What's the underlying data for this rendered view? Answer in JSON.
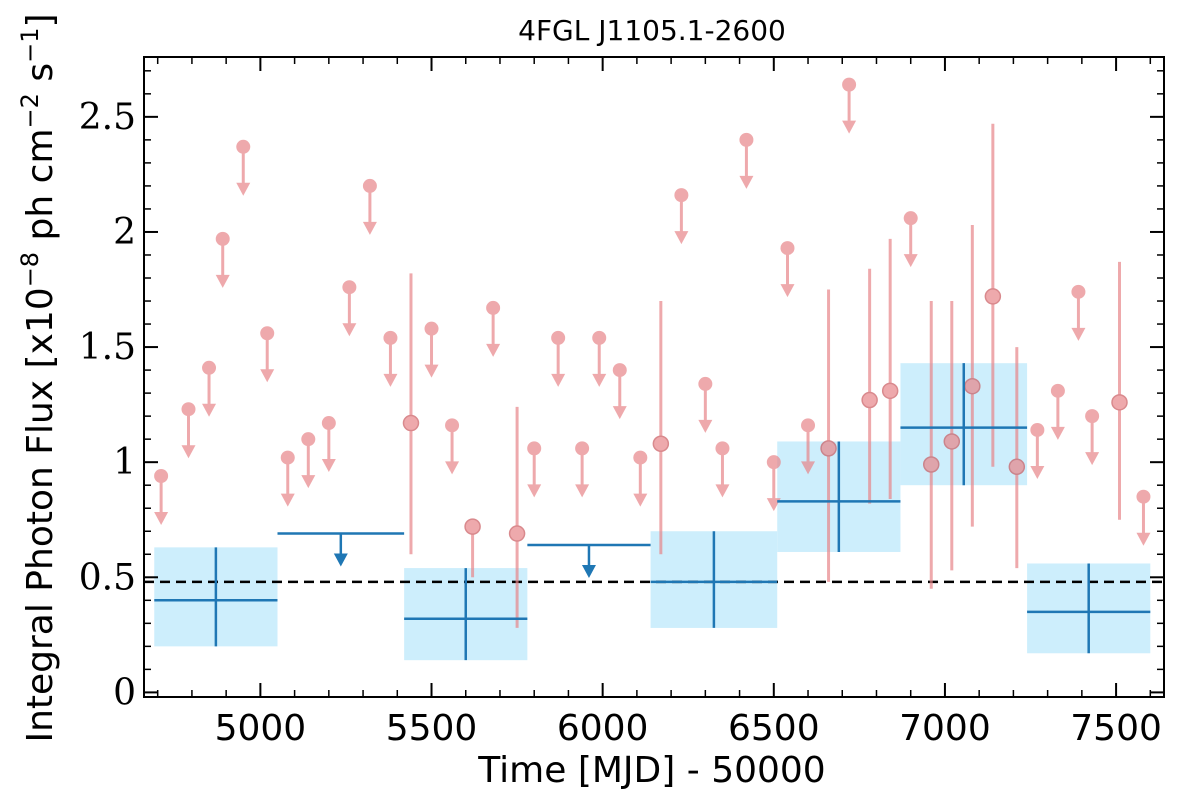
{
  "chart_data": {
    "type": "scatter",
    "title": "4FGL J1105.1-2600",
    "xlabel": "Time [MJD] - 50000",
    "ylabel": "Integral Photon Flux [x10",
    "ylabel_exp1": "−8",
    "ylabel_mid": " ph cm",
    "ylabel_exp2": "−2",
    "ylabel_mid2": " s",
    "ylabel_exp3": "−1",
    "ylabel_end": "]",
    "xlim": [
      4660,
      7640
    ],
    "ylim": [
      -0.02,
      2.76
    ],
    "xticks": [
      5000,
      5500,
      6000,
      6500,
      7000,
      7500
    ],
    "xtick_labels": [
      "5000",
      "5500",
      "6000",
      "6500",
      "7000",
      "7500"
    ],
    "yticks": [
      0,
      0.5,
      1,
      1.5,
      2,
      2.5
    ],
    "ytick_labels": [
      "0",
      "0.5",
      "1",
      "1.5",
      "2",
      "2.5"
    ],
    "reference_line": 0.48,
    "colors": {
      "short_bins": "#e8868a",
      "long_bins": "#1f77b4",
      "box_fill": "#cdeefc",
      "reference": "#000000"
    },
    "short_bins_upper_limits": [
      [
        4710,
        0.94
      ],
      [
        4790,
        1.23
      ],
      [
        4850,
        1.41
      ],
      [
        4890,
        1.97
      ],
      [
        4950,
        2.37
      ],
      [
        5020,
        1.56
      ],
      [
        5080,
        1.02
      ],
      [
        5140,
        1.1
      ],
      [
        5200,
        1.17
      ],
      [
        5260,
        1.76
      ],
      [
        5320,
        2.2
      ],
      [
        5380,
        1.54
      ],
      [
        5500,
        1.58
      ],
      [
        5560,
        1.16
      ],
      [
        5680,
        1.67
      ],
      [
        5800,
        1.06
      ],
      [
        5870,
        1.54
      ],
      [
        5940,
        1.06
      ],
      [
        5990,
        1.54
      ],
      [
        6050,
        1.4
      ],
      [
        6110,
        1.02
      ],
      [
        6230,
        2.16
      ],
      [
        6300,
        1.34
      ],
      [
        6350,
        1.06
      ],
      [
        6420,
        2.4
      ],
      [
        6500,
        1.0
      ],
      [
        6540,
        1.93
      ],
      [
        6600,
        1.16
      ],
      [
        6720,
        2.64
      ],
      [
        6900,
        2.06
      ],
      [
        7270,
        1.14
      ],
      [
        7330,
        1.31
      ],
      [
        7390,
        1.74
      ],
      [
        7430,
        1.2
      ],
      [
        7580,
        0.85
      ]
    ],
    "short_bins_detections": [
      {
        "x": 5440,
        "y": 1.17,
        "lo": 0.6,
        "hi": 1.82
      },
      {
        "x": 5620,
        "y": 0.72,
        "lo": 0.5,
        "hi": 0.72
      },
      {
        "x": 5750,
        "y": 0.69,
        "lo": 0.28,
        "hi": 1.24
      },
      {
        "x": 6170,
        "y": 1.08,
        "lo": 0.6,
        "hi": 1.7
      },
      {
        "x": 6660,
        "y": 1.06,
        "lo": 0.48,
        "hi": 1.75
      },
      {
        "x": 6780,
        "y": 1.27,
        "lo": 0.82,
        "hi": 1.84
      },
      {
        "x": 6840,
        "y": 1.31,
        "lo": 0.84,
        "hi": 1.97
      },
      {
        "x": 6960,
        "y": 0.99,
        "lo": 0.45,
        "hi": 1.7
      },
      {
        "x": 7020,
        "y": 1.09,
        "lo": 0.53,
        "hi": 1.7
      },
      {
        "x": 7080,
        "y": 1.33,
        "lo": 0.72,
        "hi": 2.03
      },
      {
        "x": 7140,
        "y": 1.72,
        "lo": 0.98,
        "hi": 2.47
      },
      {
        "x": 7210,
        "y": 0.98,
        "lo": 0.54,
        "hi": 1.5
      },
      {
        "x": 7510,
        "y": 1.26,
        "lo": 0.75,
        "hi": 1.87
      }
    ],
    "long_bins_detections": [
      {
        "x0": 4690,
        "x1": 5050,
        "y": 0.4,
        "lo": 0.2,
        "hi": 0.63
      },
      {
        "x0": 5420,
        "x1": 5780,
        "y": 0.32,
        "lo": 0.14,
        "hi": 0.54
      },
      {
        "x0": 6140,
        "x1": 6510,
        "y": 0.48,
        "lo": 0.28,
        "hi": 0.7
      },
      {
        "x0": 6510,
        "x1": 6870,
        "y": 0.83,
        "lo": 0.61,
        "hi": 1.09
      },
      {
        "x0": 6870,
        "x1": 7240,
        "y": 1.15,
        "lo": 0.9,
        "hi": 1.43
      },
      {
        "x0": 7240,
        "x1": 7600,
        "y": 0.35,
        "lo": 0.17,
        "hi": 0.56
      }
    ],
    "long_bins_upper_limits": [
      {
        "x0": 5050,
        "x1": 5420,
        "y": 0.69
      },
      {
        "x0": 5780,
        "x1": 6140,
        "y": 0.64
      }
    ]
  }
}
